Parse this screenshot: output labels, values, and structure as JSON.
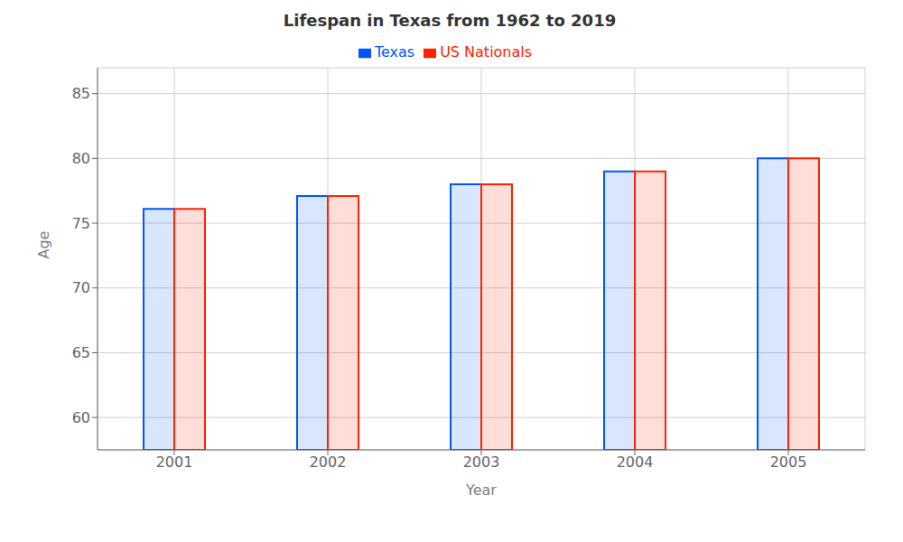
{
  "chart_data": {
    "type": "bar",
    "title": "Lifespan in Texas from 1962 to 2019",
    "x_label": "Year",
    "y_label": "Age",
    "categories": [
      "2001",
      "2002",
      "2003",
      "2004",
      "2005"
    ],
    "series": [
      {
        "name": "Texas",
        "color": "#0055ff",
        "values": [
          76.1,
          77.1,
          78.0,
          79.0,
          80.0
        ]
      },
      {
        "name": "US Nationals",
        "color": "#ff2200",
        "values": [
          76.1,
          77.1,
          78.0,
          79.0,
          80.0
        ]
      }
    ],
    "ylim": [
      57.5,
      87
    ],
    "yticks": [
      60,
      65,
      70,
      75,
      80,
      85
    ],
    "grid": true,
    "legend": "upper center"
  }
}
